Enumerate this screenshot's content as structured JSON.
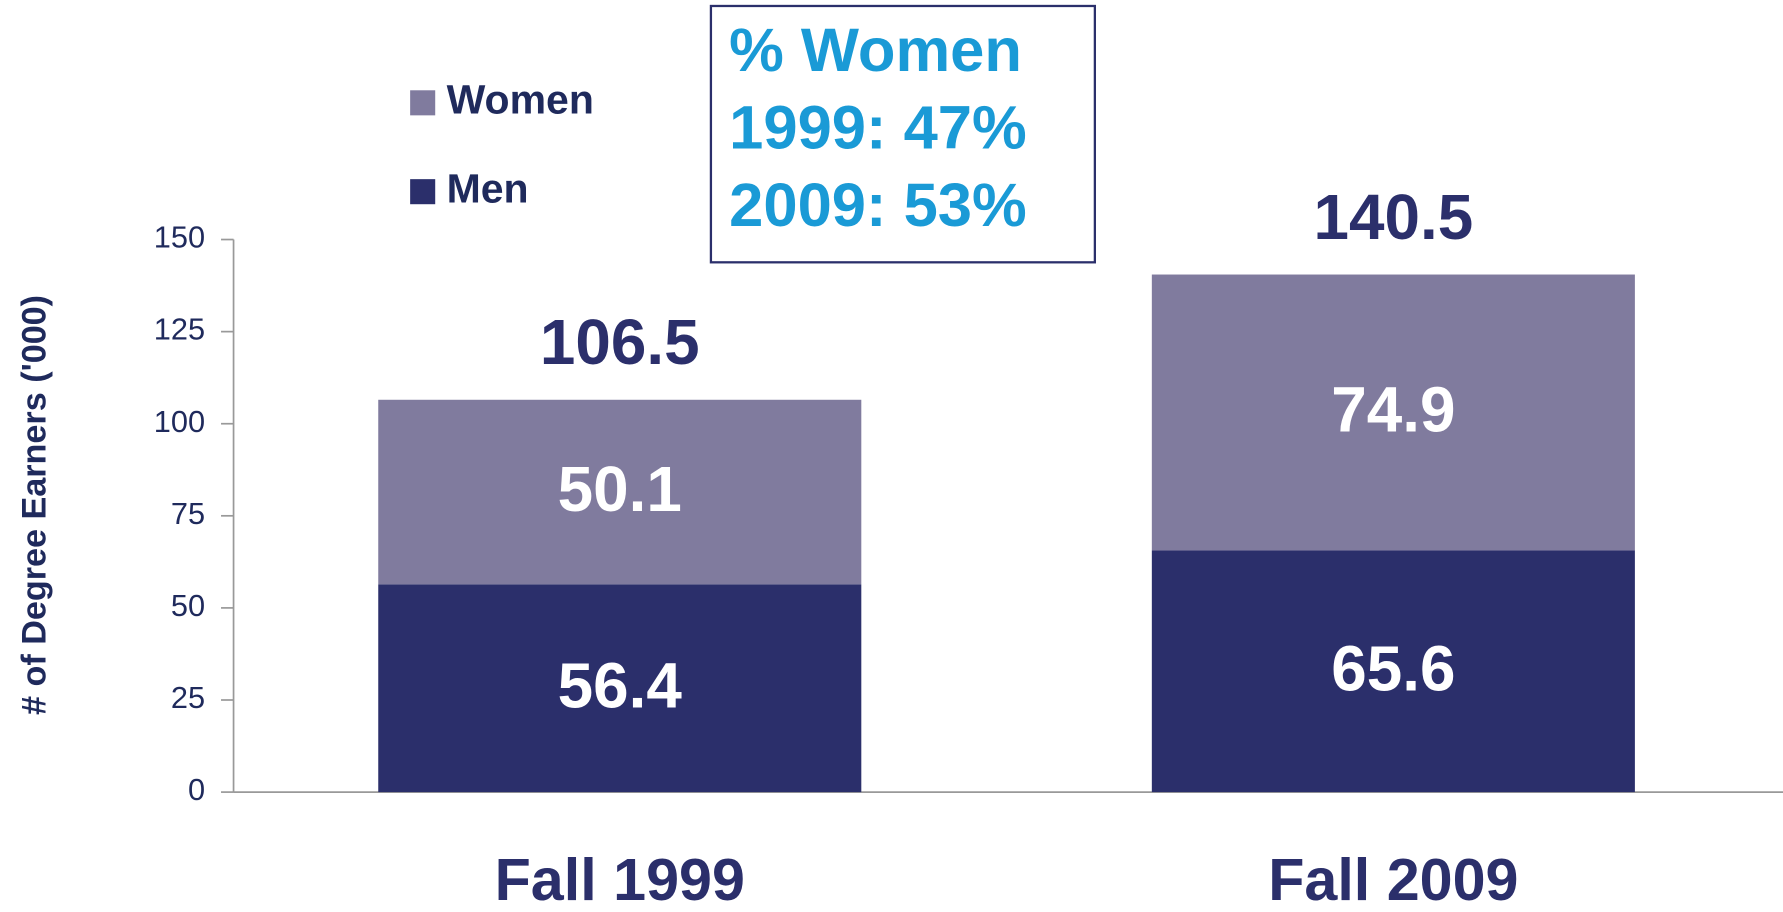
{
  "chart_data": {
    "type": "stacked_bar",
    "categories": [
      "Fall 1999",
      "Fall 2009"
    ],
    "series": [
      {
        "name": "Men",
        "color": "#2b2f6b",
        "values": [
          56.4,
          65.6
        ]
      },
      {
        "name": "Women",
        "color": "#807b9e",
        "values": [
          50.1,
          74.9
        ]
      }
    ],
    "totals": [
      106.5,
      140.5
    ],
    "y_label": "# of Degree Earners ('000)",
    "annotation": [
      "% Women",
      "1999: 47%",
      "2009: 53%"
    ],
    "annotation_color": "#1a9ad6",
    "ylim": [
      0,
      150
    ],
    "yticks": [
      0,
      25,
      50,
      75,
      100,
      125,
      150
    ]
  }
}
